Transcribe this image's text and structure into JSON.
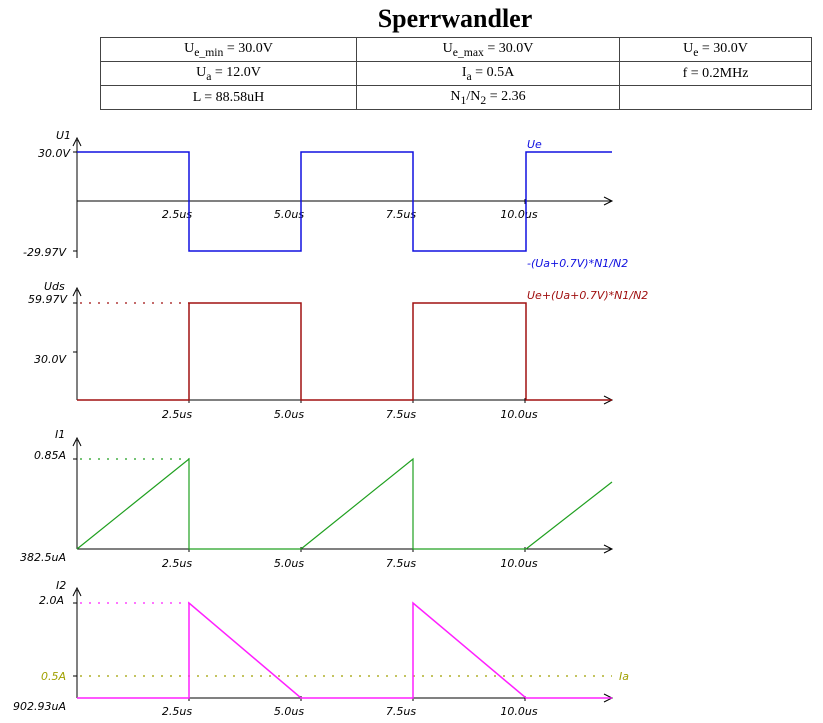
{
  "title": "Sperrwandler",
  "params": {
    "ue_min": {
      "name": "U",
      "sub": "e_min",
      "value": " = 30.0V"
    },
    "ue_max": {
      "name": "U",
      "sub": "e_max",
      "value": " = 30.0V"
    },
    "ue": {
      "name": "U",
      "sub": "e",
      "value": " = 30.0V"
    },
    "ua": {
      "name": "U",
      "sub": "a",
      "value": " = 12.0V"
    },
    "ia": {
      "name": "I",
      "sub": "a",
      "value": " = 0.5A"
    },
    "f": {
      "text": "f = 0.2MHz"
    },
    "l": {
      "text": "L = 88.58uH"
    },
    "n_ratio": {
      "n1": "N",
      "n1_sub": "1",
      "slash": "/N",
      "n2_sub": "2",
      "value": " = 2.36"
    }
  },
  "time_ticks": [
    "2.5us",
    "5.0us",
    "7.5us",
    "10.0us"
  ],
  "colors": {
    "u1": "#1010e0",
    "uds": "#a01010",
    "i1": "#20a020",
    "i2": "#ff20ff",
    "ia": "#a0a000",
    "axis": "#000000"
  },
  "plots": {
    "u1": {
      "axis_name": "U1",
      "ytick_top": "30.0V",
      "ytick_bottom": "-29.97V",
      "label_top": "Ue",
      "label_bottom": "-(Ua+0.7V)*N1/N2"
    },
    "uds": {
      "axis_name": "Uds",
      "ytick_top": "59.97V",
      "ytick_mid": "30.0V",
      "label_top": "Ue+(Ua+0.7V)*N1/N2"
    },
    "i1": {
      "axis_name": "I1",
      "ytick_top": "0.85A",
      "ytick_bottom": "382.5uA"
    },
    "i2": {
      "axis_name": "I2",
      "ytick_top": "2.0A",
      "ytick_mid": "0.5A",
      "ytick_bottom": "902.93uA",
      "label_mid": "Ia"
    }
  }
}
